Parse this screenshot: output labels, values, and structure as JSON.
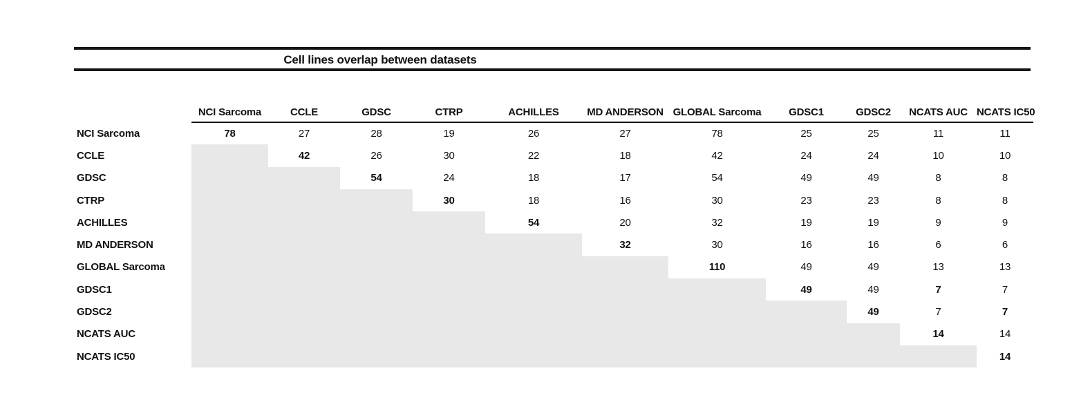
{
  "title": "Cell lines overlap between datasets",
  "colors": {
    "shaded_cell": "#e8e8e8",
    "rule": "#151515",
    "text": "#111111",
    "background": "#ffffff"
  },
  "chart_data": {
    "type": "table",
    "title": "Cell lines overlap between datasets",
    "columns": [
      "NCI Sarcoma",
      "CCLE",
      "GDSC",
      "CTRP",
      "ACHILLES",
      "MD ANDERSON",
      "GLOBAL Sarcoma",
      "GDSC1",
      "GDSC2",
      "NCATS AUC",
      "NCATS IC50"
    ],
    "rows": [
      "NCI Sarcoma",
      "CCLE",
      "GDSC",
      "CTRP",
      "ACHILLES",
      "MD ANDERSON",
      "GLOBAL Sarcoma",
      "GDSC1",
      "GDSC2",
      "NCATS AUC",
      "NCATS IC50"
    ],
    "values": [
      [
        78,
        27,
        28,
        19,
        26,
        27,
        78,
        25,
        25,
        11,
        11
      ],
      [
        null,
        42,
        26,
        30,
        22,
        18,
        42,
        24,
        24,
        10,
        10
      ],
      [
        null,
        null,
        54,
        24,
        18,
        17,
        54,
        49,
        49,
        8,
        8
      ],
      [
        null,
        null,
        null,
        30,
        18,
        16,
        30,
        23,
        23,
        8,
        8
      ],
      [
        null,
        null,
        null,
        null,
        54,
        20,
        32,
        19,
        19,
        9,
        9
      ],
      [
        null,
        null,
        null,
        null,
        null,
        32,
        30,
        16,
        16,
        6,
        6
      ],
      [
        null,
        null,
        null,
        null,
        null,
        null,
        110,
        49,
        49,
        13,
        13
      ],
      [
        null,
        null,
        null,
        null,
        null,
        null,
        null,
        49,
        49,
        7,
        7
      ],
      [
        null,
        null,
        null,
        null,
        null,
        null,
        null,
        null,
        49,
        7,
        7
      ],
      [
        null,
        null,
        null,
        null,
        null,
        null,
        null,
        null,
        null,
        14,
        14
      ],
      [
        null,
        null,
        null,
        null,
        null,
        null,
        null,
        null,
        null,
        null,
        14
      ]
    ],
    "bold_cells": [
      [
        0,
        0
      ],
      [
        1,
        1
      ],
      [
        2,
        2
      ],
      [
        3,
        3
      ],
      [
        4,
        4
      ],
      [
        5,
        5
      ],
      [
        6,
        6
      ],
      [
        7,
        7
      ],
      [
        7,
        9
      ],
      [
        8,
        8
      ],
      [
        8,
        10
      ],
      [
        9,
        9
      ],
      [
        10,
        10
      ]
    ],
    "empty_cell_style": "shaded light gray, lower triangle",
    "legend_position": "none",
    "grid": false
  }
}
